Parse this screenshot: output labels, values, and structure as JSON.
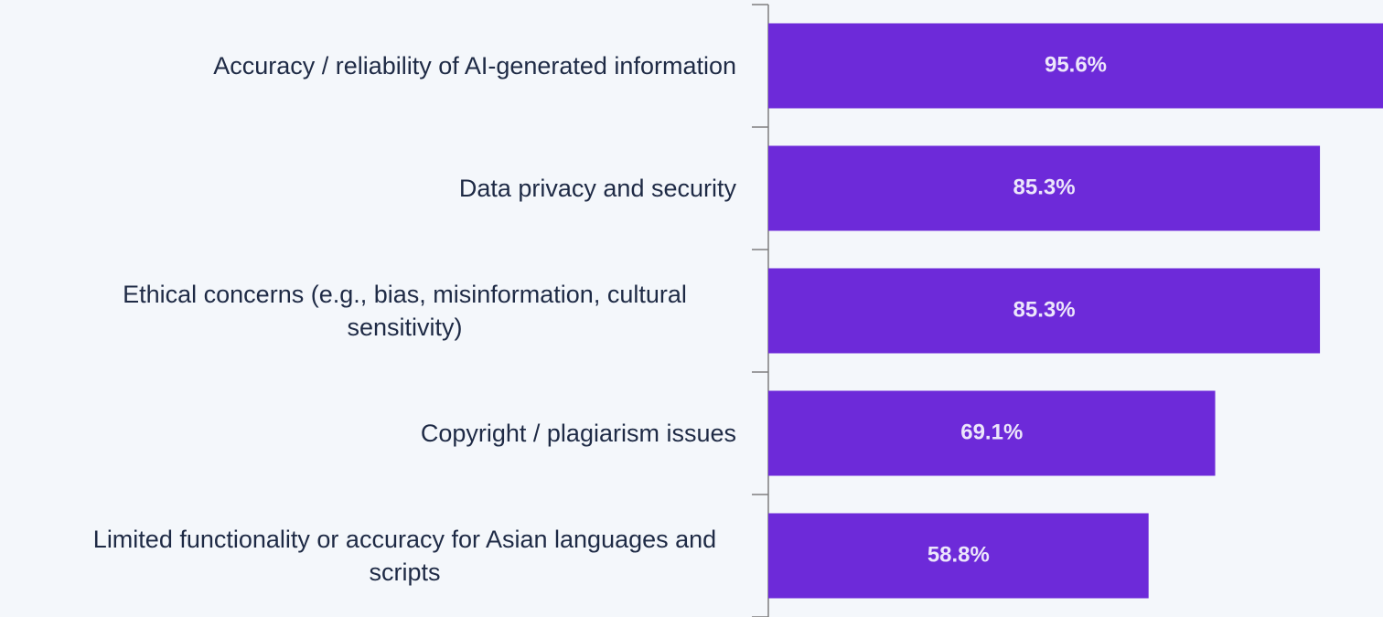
{
  "chart_data": {
    "type": "barh",
    "categories": [
      "Accuracy / reliability of AI-generated information",
      "Data privacy and security",
      "Ethical concerns (e.g., bias, misinformation, cultural sensitivity)",
      "Copyright / plagiarism issues",
      "Limited functionality or accuracy for Asian languages and scripts"
    ],
    "values": [
      95.6,
      85.3,
      85.3,
      69.1,
      58.8
    ],
    "value_labels": [
      "95.6%",
      "85.3%",
      "85.3%",
      "69.1%",
      "58.8%"
    ],
    "color": "#6d2ad9"
  }
}
